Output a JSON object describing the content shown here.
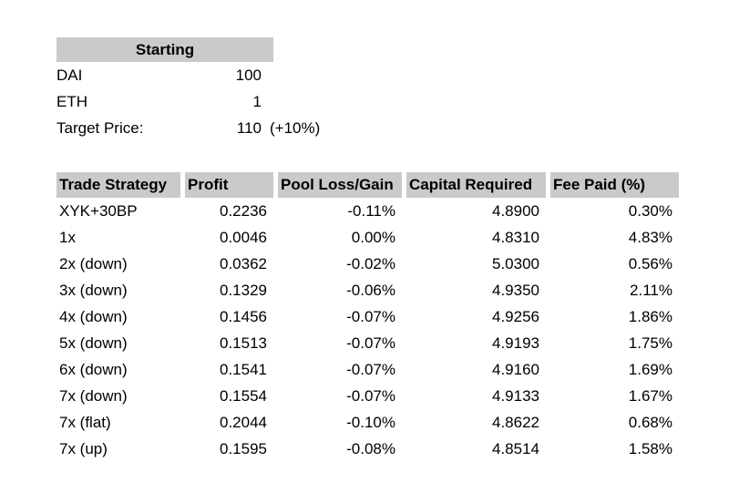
{
  "colors": {
    "page_bg": "#ffffff",
    "header_bg": "#cacaca",
    "text": "#000000"
  },
  "starting": {
    "title": "Starting",
    "rows": [
      {
        "label": "DAI",
        "value": "100",
        "note": ""
      },
      {
        "label": "ETH",
        "value": "1",
        "note": ""
      },
      {
        "label": "Target Price:",
        "value": "110",
        "note": "(+10%)"
      }
    ]
  },
  "strategy_table": {
    "columns": [
      "Trade Strategy",
      "Profit",
      "Pool Loss/Gain",
      "Capital Required",
      "Fee Paid (%)"
    ],
    "rows": [
      [
        "XYK+30BP",
        "0.2236",
        "-0.11%",
        "4.8900",
        "0.30%"
      ],
      [
        "1x",
        "0.0046",
        "0.00%",
        "4.8310",
        "4.83%"
      ],
      [
        "2x (down)",
        "0.0362",
        "-0.02%",
        "5.0300",
        "0.56%"
      ],
      [
        "3x (down)",
        "0.1329",
        "-0.06%",
        "4.9350",
        "2.11%"
      ],
      [
        "4x (down)",
        "0.1456",
        "-0.07%",
        "4.9256",
        "1.86%"
      ],
      [
        "5x (down)",
        "0.1513",
        "-0.07%",
        "4.9193",
        "1.75%"
      ],
      [
        "6x (down)",
        "0.1541",
        "-0.07%",
        "4.9160",
        "1.69%"
      ],
      [
        "7x (down)",
        "0.1554",
        "-0.07%",
        "4.9133",
        "1.67%"
      ],
      [
        "7x (flat)",
        "0.2044",
        "-0.10%",
        "4.8622",
        "0.68%"
      ],
      [
        "7x (up)",
        "0.1595",
        "-0.08%",
        "4.8514",
        "1.58%"
      ]
    ]
  },
  "chart_data": [
    {
      "type": "table",
      "title": "Starting",
      "columns": [
        "",
        ""
      ],
      "rows": [
        [
          "DAI",
          "100"
        ],
        [
          "ETH",
          "1"
        ],
        [
          "Target Price:",
          "110 (+10%)"
        ]
      ]
    },
    {
      "type": "table",
      "title": "",
      "columns": [
        "Trade Strategy",
        "Profit",
        "Pool Loss/Gain",
        "Capital Required",
        "Fee Paid (%)"
      ],
      "rows": [
        [
          "XYK+30BP",
          0.2236,
          "-0.11%",
          4.89,
          "0.30%"
        ],
        [
          "1x",
          0.0046,
          "0.00%",
          4.831,
          "4.83%"
        ],
        [
          "2x (down)",
          0.0362,
          "-0.02%",
          5.03,
          "0.56%"
        ],
        [
          "3x (down)",
          0.1329,
          "-0.06%",
          4.935,
          "2.11%"
        ],
        [
          "4x (down)",
          0.1456,
          "-0.07%",
          4.9256,
          "1.86%"
        ],
        [
          "5x (down)",
          0.1513,
          "-0.07%",
          4.9193,
          "1.75%"
        ],
        [
          "6x (down)",
          0.1541,
          "-0.07%",
          4.916,
          "1.69%"
        ],
        [
          "7x (down)",
          0.1554,
          "-0.07%",
          4.9133,
          "1.67%"
        ],
        [
          "7x (flat)",
          0.2044,
          "-0.10%",
          4.8622,
          "0.68%"
        ],
        [
          "7x (up)",
          0.1595,
          "-0.08%",
          4.8514,
          "1.58%"
        ]
      ]
    }
  ]
}
